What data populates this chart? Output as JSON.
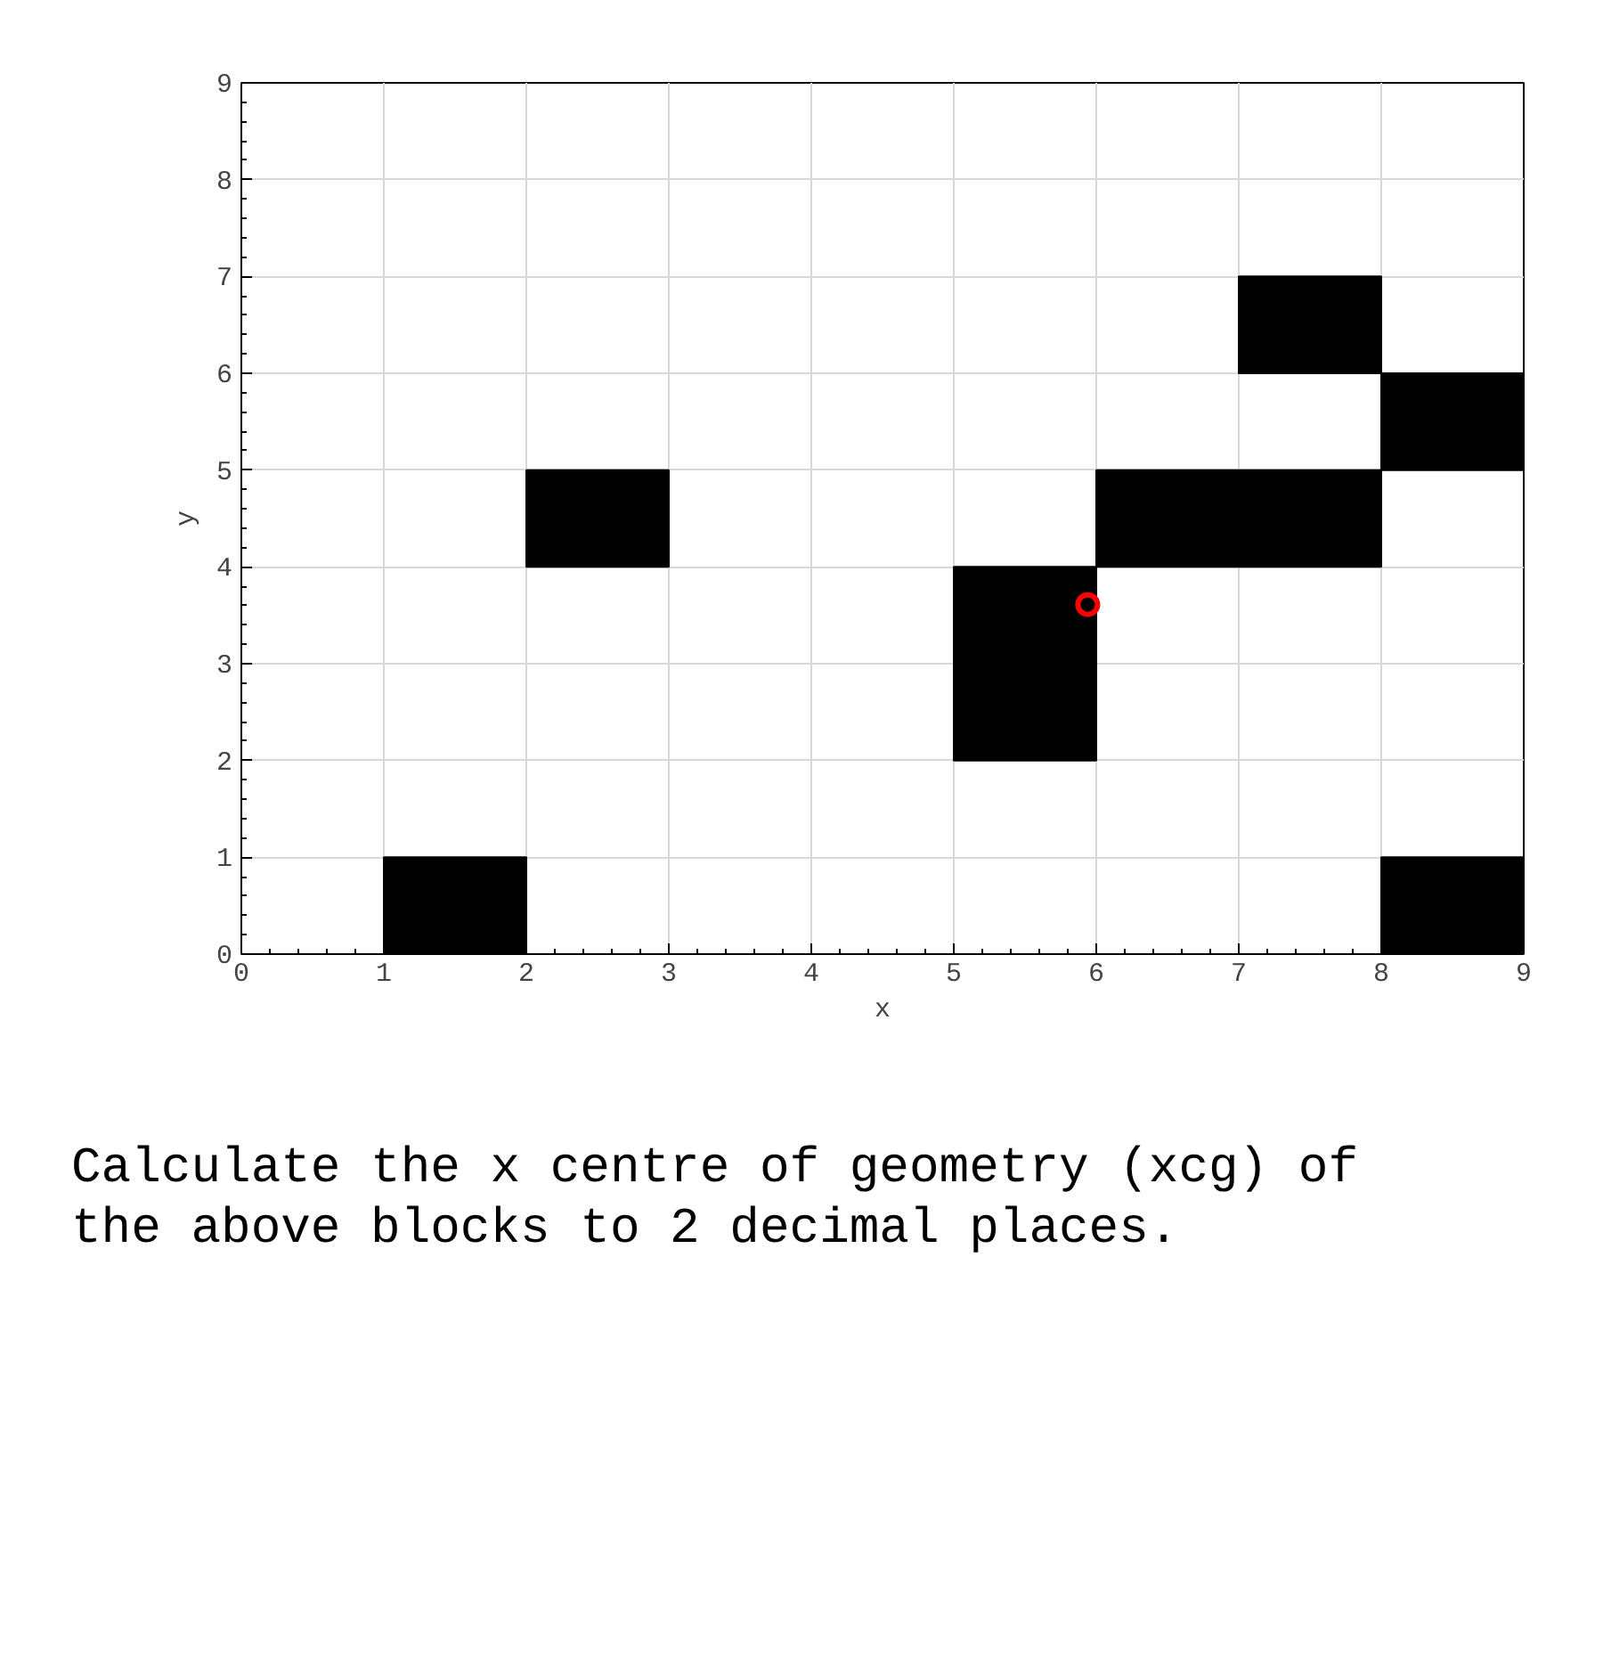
{
  "chart_data": {
    "type": "bar",
    "xlabel": "x",
    "ylabel": "y",
    "xlim": [
      0,
      9
    ],
    "ylim": [
      0,
      9
    ],
    "xticks": [
      0,
      1,
      2,
      3,
      4,
      5,
      6,
      7,
      8,
      9
    ],
    "yticks": [
      0,
      1,
      2,
      3,
      4,
      5,
      6,
      7,
      8,
      9
    ],
    "grid": true,
    "series": [
      {
        "color": "#000000",
        "x": [
          1.5,
          2.5,
          5.5,
          6.5,
          7.5,
          8.5
        ],
        "base": [
          0,
          4,
          2,
          4,
          4,
          0
        ],
        "values": [
          1,
          1,
          2,
          1,
          1,
          1
        ]
      },
      {
        "color": "#000000",
        "x": [
          7.5,
          8.5
        ],
        "base": [
          6,
          5
        ],
        "values": [
          1,
          1
        ]
      },
      {
        "type": "scatter",
        "color": "#ff0000",
        "marker": "circle",
        "x": [
          5.94
        ],
        "values": [
          3.61
        ]
      }
    ],
    "annotations": [
      "Calculate the x centre of geometry (xcg) of the above blocks to 2 decimal places."
    ]
  }
}
